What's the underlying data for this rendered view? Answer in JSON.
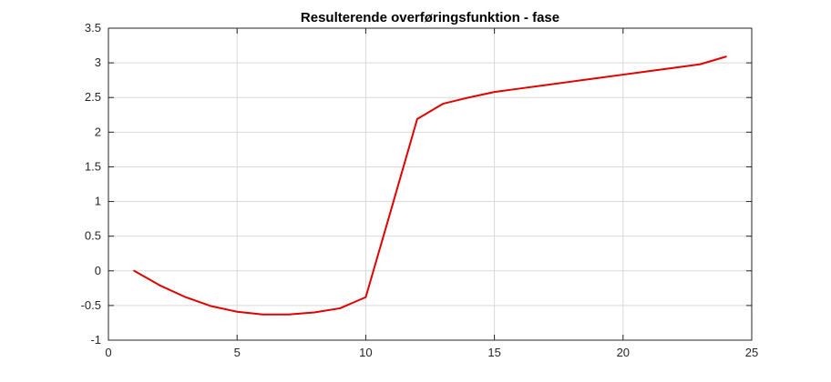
{
  "chart_data": {
    "type": "line",
    "title": "Resulterende overføringsfunktion - fase",
    "xlabel": "",
    "ylabel": "",
    "xlim": [
      0,
      25
    ],
    "ylim": [
      -1,
      3.5
    ],
    "xticks": [
      "0",
      "5",
      "10",
      "15",
      "20",
      "25"
    ],
    "yticks": [
      "-1",
      "-0.5",
      "0",
      "0.5",
      "1",
      "1.5",
      "2",
      "2.5",
      "3",
      "3.5"
    ],
    "grid": true,
    "line_color": "#e00000",
    "series": [
      {
        "x": [
          1,
          2,
          3,
          4,
          5,
          6,
          7,
          8,
          9,
          10,
          11,
          12,
          13,
          14,
          15,
          16,
          17,
          18,
          19,
          20,
          21,
          22,
          23,
          24
        ],
        "values": [
          0.0,
          -0.21,
          -0.38,
          -0.51,
          -0.59,
          -0.63,
          -0.63,
          -0.6,
          -0.54,
          -0.38,
          0.9,
          2.19,
          2.41,
          2.5,
          2.58,
          2.63,
          2.68,
          2.73,
          2.78,
          2.83,
          2.88,
          2.93,
          2.98,
          3.09
        ]
      }
    ]
  }
}
